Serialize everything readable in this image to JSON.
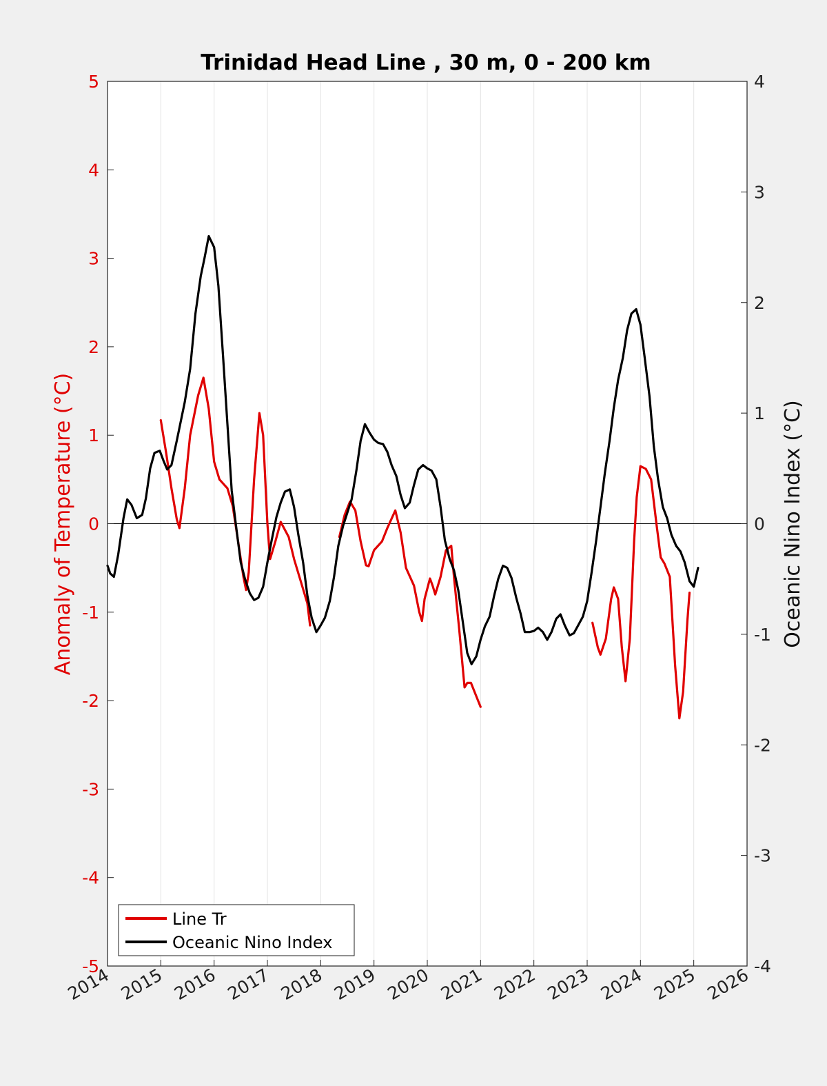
{
  "chart_data": {
    "type": "line",
    "title": "Trinidad Head Line , 30 m, 0 - 200 km",
    "ylabel_left": "Anomaly of Temperature (°C)",
    "ylabel_right": "Oceanic Nino Index (°C)",
    "xlim": [
      2014,
      2026
    ],
    "ylim_left": [
      -5,
      5
    ],
    "ylim_right": [
      -4,
      4
    ],
    "x_ticks": [
      "2014",
      "2015",
      "2016",
      "2017",
      "2018",
      "2019",
      "2020",
      "2021",
      "2022",
      "2023",
      "2024",
      "2025",
      "2026"
    ],
    "y_left_ticks": [
      "5",
      "4",
      "3",
      "2",
      "1",
      "0",
      "-1",
      "-2",
      "-3",
      "-4",
      "-5"
    ],
    "y_right_ticks": [
      "4",
      "3",
      "2",
      "1",
      "0",
      "-1",
      "-2",
      "-3",
      "-4"
    ],
    "grid": "vertical",
    "zero_line": true,
    "legend_position": "bottom-left",
    "colors": {
      "line_tr": "#e00000",
      "oni": "#000000",
      "left_axis": "#e00000"
    },
    "series": [
      {
        "name": "Line Tr",
        "axis": "left",
        "color": "#e00000",
        "segments": [
          [
            [
              2015.0,
              1.17
            ],
            [
              2015.1,
              0.8
            ],
            [
              2015.2,
              0.4
            ],
            [
              2015.3,
              0.05
            ],
            [
              2015.35,
              -0.05
            ],
            [
              2015.45,
              0.4
            ],
            [
              2015.55,
              1.0
            ],
            [
              2015.7,
              1.45
            ],
            [
              2015.8,
              1.65
            ],
            [
              2015.9,
              1.3
            ],
            [
              2016.0,
              0.7
            ],
            [
              2016.1,
              0.5
            ],
            [
              2016.25,
              0.4
            ],
            [
              2016.35,
              0.2
            ],
            [
              2016.45,
              -0.2
            ],
            [
              2016.55,
              -0.6
            ],
            [
              2016.6,
              -0.75
            ],
            [
              2016.65,
              -0.55
            ],
            [
              2016.75,
              0.5
            ],
            [
              2016.85,
              1.25
            ],
            [
              2016.92,
              1.0
            ],
            [
              2017.0,
              0.0
            ],
            [
              2017.05,
              -0.4
            ],
            [
              2017.15,
              -0.2
            ],
            [
              2017.25,
              0.02
            ],
            [
              2017.4,
              -0.15
            ],
            [
              2017.5,
              -0.4
            ],
            [
              2017.65,
              -0.7
            ],
            [
              2017.75,
              -0.9
            ],
            [
              2017.8,
              -1.15
            ]
          ],
          [
            [
              2018.35,
              -0.15
            ],
            [
              2018.45,
              0.1
            ],
            [
              2018.55,
              0.25
            ],
            [
              2018.65,
              0.15
            ],
            [
              2018.75,
              -0.2
            ],
            [
              2018.85,
              -0.47
            ],
            [
              2018.9,
              -0.48
            ],
            [
              2019.0,
              -0.3
            ],
            [
              2019.15,
              -0.2
            ],
            [
              2019.25,
              -0.05
            ],
            [
              2019.4,
              0.15
            ],
            [
              2019.5,
              -0.1
            ],
            [
              2019.6,
              -0.5
            ],
            [
              2019.75,
              -0.7
            ],
            [
              2019.85,
              -1.0
            ],
            [
              2019.9,
              -1.1
            ],
            [
              2019.95,
              -0.85
            ],
            [
              2020.05,
              -0.62
            ],
            [
              2020.1,
              -0.7
            ],
            [
              2020.15,
              -0.8
            ],
            [
              2020.25,
              -0.6
            ],
            [
              2020.35,
              -0.3
            ],
            [
              2020.45,
              -0.25
            ],
            [
              2020.5,
              -0.6
            ],
            [
              2020.6,
              -1.2
            ],
            [
              2020.7,
              -1.85
            ],
            [
              2020.75,
              -1.8
            ],
            [
              2020.82,
              -1.8
            ],
            [
              2020.92,
              -1.95
            ],
            [
              2021.0,
              -2.07
            ]
          ],
          [
            [
              2023.1,
              -1.12
            ],
            [
              2023.2,
              -1.4
            ],
            [
              2023.25,
              -1.48
            ],
            [
              2023.35,
              -1.3
            ],
            [
              2023.45,
              -0.85
            ],
            [
              2023.5,
              -0.72
            ],
            [
              2023.58,
              -0.85
            ],
            [
              2023.65,
              -1.4
            ],
            [
              2023.72,
              -1.78
            ],
            [
              2023.8,
              -1.3
            ],
            [
              2023.88,
              -0.2
            ],
            [
              2023.93,
              0.3
            ],
            [
              2024.0,
              0.65
            ],
            [
              2024.1,
              0.62
            ],
            [
              2024.2,
              0.5
            ],
            [
              2024.3,
              0.0
            ],
            [
              2024.38,
              -0.38
            ],
            [
              2024.45,
              -0.45
            ],
            [
              2024.55,
              -0.6
            ],
            [
              2024.65,
              -1.6
            ],
            [
              2024.73,
              -2.2
            ],
            [
              2024.8,
              -1.9
            ],
            [
              2024.88,
              -1.1
            ],
            [
              2024.92,
              -0.78
            ]
          ]
        ]
      },
      {
        "name": "Oceanic Nino Index",
        "axis": "right",
        "color": "#000000",
        "segments": [
          [
            [
              2014.0,
              -0.38
            ],
            [
              2014.05,
              -0.45
            ],
            [
              2014.12,
              -0.48
            ],
            [
              2014.2,
              -0.28
            ],
            [
              2014.3,
              0.05
            ],
            [
              2014.37,
              0.22
            ],
            [
              2014.45,
              0.17
            ],
            [
              2014.55,
              0.05
            ],
            [
              2014.65,
              0.08
            ],
            [
              2014.72,
              0.23
            ],
            [
              2014.8,
              0.5
            ],
            [
              2014.88,
              0.64
            ],
            [
              2014.98,
              0.66
            ],
            [
              2015.05,
              0.57
            ],
            [
              2015.12,
              0.49
            ],
            [
              2015.2,
              0.53
            ],
            [
              2015.3,
              0.75
            ],
            [
              2015.45,
              1.1
            ],
            [
              2015.55,
              1.4
            ],
            [
              2015.65,
              1.9
            ],
            [
              2015.75,
              2.24
            ],
            [
              2015.82,
              2.4
            ],
            [
              2015.9,
              2.6
            ],
            [
              2016.0,
              2.5
            ],
            [
              2016.08,
              2.15
            ],
            [
              2016.17,
              1.5
            ],
            [
              2016.25,
              0.9
            ],
            [
              2016.33,
              0.3
            ],
            [
              2016.42,
              -0.05
            ],
            [
              2016.5,
              -0.35
            ],
            [
              2016.58,
              -0.5
            ],
            [
              2016.67,
              -0.63
            ],
            [
              2016.75,
              -0.69
            ],
            [
              2016.83,
              -0.67
            ],
            [
              2016.92,
              -0.57
            ],
            [
              2017.0,
              -0.35
            ],
            [
              2017.08,
              -0.15
            ],
            [
              2017.17,
              0.06
            ],
            [
              2017.25,
              0.19
            ],
            [
              2017.33,
              0.29
            ],
            [
              2017.42,
              0.31
            ],
            [
              2017.5,
              0.15
            ],
            [
              2017.58,
              -0.1
            ],
            [
              2017.67,
              -0.35
            ],
            [
              2017.75,
              -0.65
            ],
            [
              2017.83,
              -0.85
            ],
            [
              2017.92,
              -0.98
            ],
            [
              2018.0,
              -0.92
            ],
            [
              2018.08,
              -0.85
            ],
            [
              2018.17,
              -0.7
            ],
            [
              2018.25,
              -0.48
            ],
            [
              2018.33,
              -0.2
            ],
            [
              2018.42,
              -0.02
            ],
            [
              2018.5,
              0.1
            ],
            [
              2018.58,
              0.22
            ],
            [
              2018.67,
              0.48
            ],
            [
              2018.75,
              0.75
            ],
            [
              2018.83,
              0.9
            ],
            [
              2018.92,
              0.82
            ],
            [
              2019.0,
              0.76
            ],
            [
              2019.08,
              0.73
            ],
            [
              2019.17,
              0.72
            ],
            [
              2019.25,
              0.65
            ],
            [
              2019.33,
              0.53
            ],
            [
              2019.42,
              0.43
            ],
            [
              2019.5,
              0.26
            ],
            [
              2019.58,
              0.14
            ],
            [
              2019.67,
              0.19
            ],
            [
              2019.75,
              0.35
            ],
            [
              2019.83,
              0.49
            ],
            [
              2019.92,
              0.53
            ],
            [
              2020.0,
              0.5
            ],
            [
              2020.08,
              0.48
            ],
            [
              2020.17,
              0.4
            ],
            [
              2020.25,
              0.15
            ],
            [
              2020.33,
              -0.15
            ],
            [
              2020.42,
              -0.32
            ],
            [
              2020.5,
              -0.42
            ],
            [
              2020.58,
              -0.6
            ],
            [
              2020.67,
              -0.9
            ],
            [
              2020.75,
              -1.17
            ],
            [
              2020.83,
              -1.27
            ],
            [
              2020.92,
              -1.2
            ],
            [
              2021.0,
              -1.05
            ],
            [
              2021.08,
              -0.93
            ],
            [
              2021.17,
              -0.84
            ],
            [
              2021.25,
              -0.66
            ],
            [
              2021.33,
              -0.5
            ],
            [
              2021.42,
              -0.38
            ],
            [
              2021.5,
              -0.4
            ],
            [
              2021.58,
              -0.49
            ],
            [
              2021.67,
              -0.67
            ],
            [
              2021.75,
              -0.81
            ],
            [
              2021.83,
              -0.98
            ],
            [
              2021.92,
              -0.98
            ],
            [
              2022.0,
              -0.97
            ],
            [
              2022.08,
              -0.94
            ],
            [
              2022.17,
              -0.98
            ],
            [
              2022.25,
              -1.05
            ],
            [
              2022.33,
              -0.98
            ],
            [
              2022.42,
              -0.86
            ],
            [
              2022.5,
              -0.82
            ],
            [
              2022.58,
              -0.92
            ],
            [
              2022.67,
              -1.01
            ],
            [
              2022.75,
              -0.99
            ],
            [
              2022.83,
              -0.92
            ],
            [
              2022.92,
              -0.84
            ],
            [
              2023.0,
              -0.7
            ],
            [
              2023.08,
              -0.45
            ],
            [
              2023.17,
              -0.15
            ],
            [
              2023.25,
              0.15
            ],
            [
              2023.33,
              0.45
            ],
            [
              2023.42,
              0.75
            ],
            [
              2023.5,
              1.05
            ],
            [
              2023.58,
              1.3
            ],
            [
              2023.67,
              1.5
            ],
            [
              2023.75,
              1.75
            ],
            [
              2023.83,
              1.9
            ],
            [
              2023.92,
              1.94
            ],
            [
              2024.0,
              1.8
            ],
            [
              2024.08,
              1.5
            ],
            [
              2024.17,
              1.15
            ],
            [
              2024.25,
              0.7
            ],
            [
              2024.33,
              0.4
            ],
            [
              2024.42,
              0.15
            ],
            [
              2024.5,
              0.05
            ],
            [
              2024.58,
              -0.1
            ],
            [
              2024.67,
              -0.2
            ],
            [
              2024.75,
              -0.25
            ],
            [
              2024.83,
              -0.35
            ],
            [
              2024.92,
              -0.52
            ],
            [
              2025.0,
              -0.57
            ],
            [
              2025.08,
              -0.4
            ]
          ]
        ]
      }
    ]
  }
}
